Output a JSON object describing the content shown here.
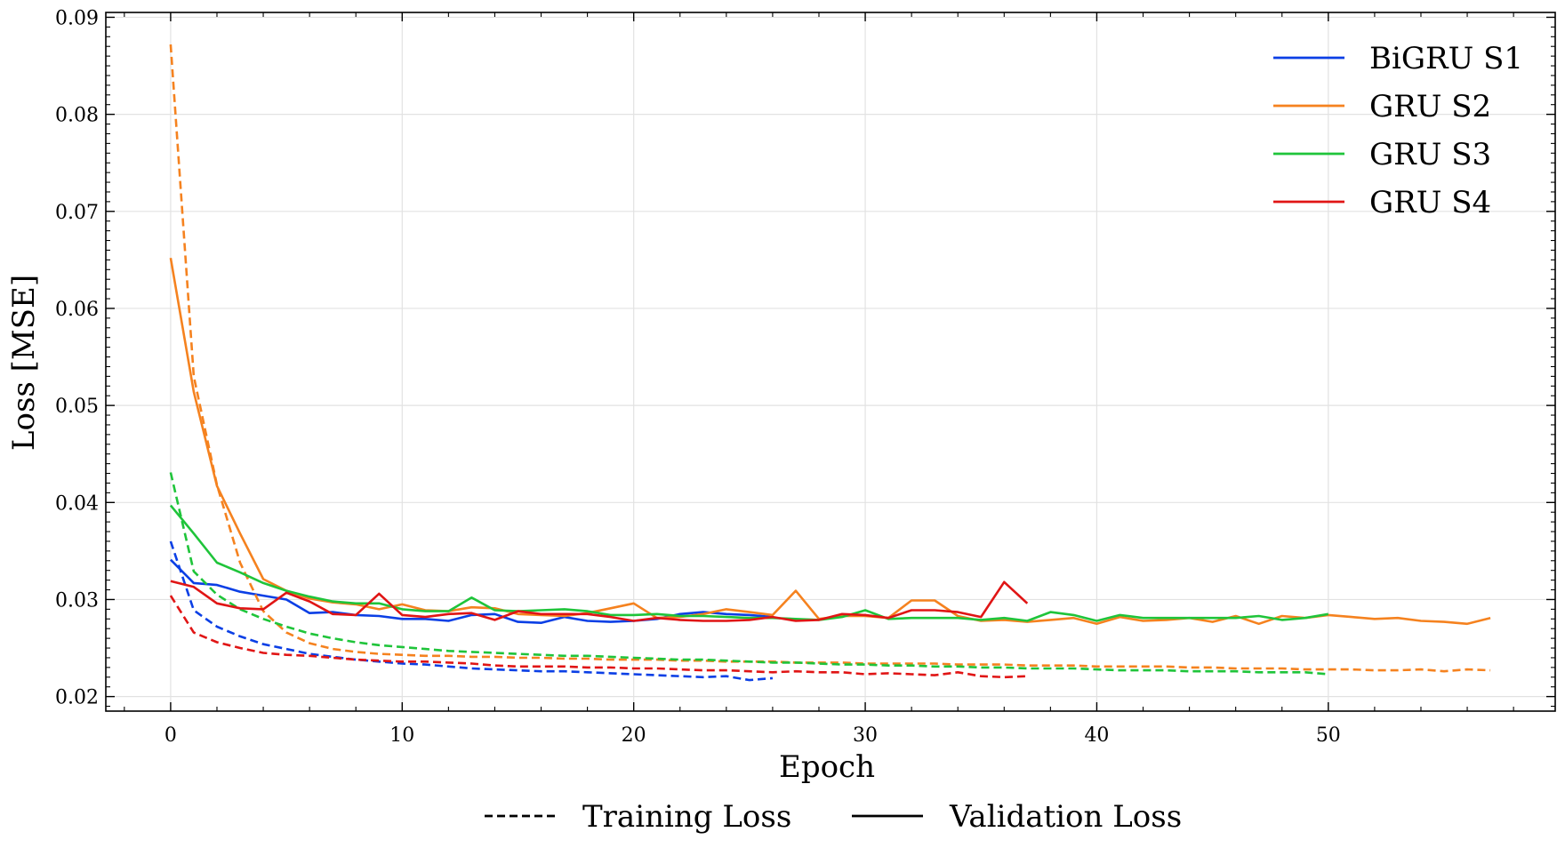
{
  "chart_data": {
    "type": "line",
    "xlabel": "Epoch",
    "ylabel": "Loss [MSE]",
    "xlim": [
      -2.8,
      59.8
    ],
    "ylim": [
      0.0185,
      0.0905
    ],
    "x_ticks": [
      0,
      10,
      20,
      30,
      40,
      50
    ],
    "y_ticks": [
      0.02,
      0.03,
      0.04,
      0.05,
      0.06,
      0.07,
      0.08,
      0.09
    ],
    "x_tick_labels": [
      "0",
      "10",
      "20",
      "30",
      "40",
      "50"
    ],
    "y_tick_labels": [
      "0.02",
      "0.03",
      "0.04",
      "0.05",
      "0.06",
      "0.07",
      "0.08",
      "0.09"
    ],
    "grid": true,
    "legend_placement": "top-right",
    "style_legend_placement": "bottom-center",
    "style_legend": [
      {
        "label": "Training Loss",
        "dash": "dashed"
      },
      {
        "label": "Validation Loss",
        "dash": "solid"
      }
    ],
    "series": [
      {
        "name": "BiGRU S1",
        "color": "#0b3fe5",
        "train": [
          0.036,
          0.0289,
          0.0272,
          0.0262,
          0.0254,
          0.0249,
          0.0244,
          0.0241,
          0.0238,
          0.0236,
          0.0234,
          0.0233,
          0.0231,
          0.0229,
          0.0228,
          0.0227,
          0.0226,
          0.0226,
          0.0225,
          0.0224,
          0.0223,
          0.0222,
          0.0221,
          0.022,
          0.0221,
          0.0217,
          0.0219
        ],
        "val": [
          0.0341,
          0.0317,
          0.0315,
          0.0308,
          0.0304,
          0.03,
          0.0286,
          0.0287,
          0.0284,
          0.0283,
          0.028,
          0.028,
          0.0278,
          0.0284,
          0.0285,
          0.0277,
          0.0276,
          0.0282,
          0.0278,
          0.0277,
          0.0278,
          0.028,
          0.0285,
          0.0287,
          0.0285,
          0.0284,
          0.0282
        ]
      },
      {
        "name": "GRU S2",
        "color": "#f5821f",
        "train": [
          0.0872,
          0.053,
          0.0418,
          0.0338,
          0.0288,
          0.0266,
          0.0255,
          0.0249,
          0.0246,
          0.0244,
          0.0243,
          0.0242,
          0.0242,
          0.0241,
          0.0241,
          0.024,
          0.024,
          0.0239,
          0.0239,
          0.0238,
          0.0238,
          0.0238,
          0.0237,
          0.0237,
          0.0236,
          0.0236,
          0.0236,
          0.0235,
          0.0235,
          0.0235,
          0.0234,
          0.0234,
          0.0234,
          0.0234,
          0.0233,
          0.0233,
          0.0233,
          0.0232,
          0.0232,
          0.0232,
          0.0231,
          0.0231,
          0.0231,
          0.0231,
          0.023,
          0.023,
          0.0229,
          0.0229,
          0.0229,
          0.0228,
          0.0228,
          0.0228,
          0.0227,
          0.0227,
          0.0228,
          0.0226,
          0.0228,
          0.0227
        ],
        "val": [
          0.0652,
          0.0514,
          0.0417,
          0.0368,
          0.0321,
          0.0309,
          0.0301,
          0.0297,
          0.0295,
          0.029,
          0.0295,
          0.0289,
          0.0288,
          0.0292,
          0.0291,
          0.0285,
          0.0284,
          0.0283,
          0.0286,
          0.0291,
          0.0296,
          0.0281,
          0.0282,
          0.0285,
          0.029,
          0.0287,
          0.0284,
          0.0309,
          0.028,
          0.0283,
          0.0283,
          0.0281,
          0.0299,
          0.0299,
          0.0283,
          0.0278,
          0.0279,
          0.0277,
          0.0279,
          0.0281,
          0.0275,
          0.0282,
          0.0278,
          0.0279,
          0.0281,
          0.0277,
          0.0283,
          0.0275,
          0.0283,
          0.0281,
          0.0284,
          0.0282,
          0.028,
          0.0281,
          0.0278,
          0.0277,
          0.0275,
          0.0281
        ]
      },
      {
        "name": "GRU S3",
        "color": "#1fc43a",
        "train": [
          0.0431,
          0.0329,
          0.0305,
          0.029,
          0.028,
          0.0272,
          0.0265,
          0.026,
          0.0256,
          0.0253,
          0.0251,
          0.0249,
          0.0247,
          0.0246,
          0.0245,
          0.0244,
          0.0243,
          0.0242,
          0.0242,
          0.0241,
          0.024,
          0.0239,
          0.0238,
          0.0238,
          0.0237,
          0.0236,
          0.0235,
          0.0235,
          0.0234,
          0.0233,
          0.0233,
          0.0232,
          0.0232,
          0.0231,
          0.0231,
          0.023,
          0.023,
          0.0229,
          0.0229,
          0.0229,
          0.0228,
          0.0227,
          0.0227,
          0.0227,
          0.0226,
          0.0226,
          0.0226,
          0.0225,
          0.0225,
          0.0225,
          0.0223
        ],
        "val": [
          0.0397,
          0.0368,
          0.0338,
          0.0328,
          0.0317,
          0.0309,
          0.0303,
          0.0298,
          0.0296,
          0.0296,
          0.029,
          0.0288,
          0.0288,
          0.0302,
          0.0289,
          0.0288,
          0.0289,
          0.029,
          0.0288,
          0.0284,
          0.0284,
          0.0285,
          0.0283,
          0.0283,
          0.0282,
          0.0281,
          0.0281,
          0.028,
          0.0279,
          0.0282,
          0.0289,
          0.028,
          0.0281,
          0.0281,
          0.0281,
          0.0279,
          0.0281,
          0.0278,
          0.0287,
          0.0284,
          0.0278,
          0.0284,
          0.0281,
          0.0281,
          0.0281,
          0.0281,
          0.0281,
          0.0283,
          0.0279,
          0.0281,
          0.0285
        ]
      },
      {
        "name": "GRU S4",
        "color": "#e01515",
        "train": [
          0.0304,
          0.0266,
          0.0256,
          0.025,
          0.0245,
          0.0243,
          0.0242,
          0.024,
          0.0238,
          0.0237,
          0.0236,
          0.0236,
          0.0235,
          0.0234,
          0.0232,
          0.0231,
          0.0231,
          0.0231,
          0.023,
          0.023,
          0.0229,
          0.0229,
          0.0228,
          0.0227,
          0.0227,
          0.0226,
          0.0225,
          0.0226,
          0.0225,
          0.0225,
          0.0223,
          0.0224,
          0.0223,
          0.0222,
          0.0225,
          0.0221,
          0.022,
          0.0221
        ],
        "val": [
          0.0319,
          0.0313,
          0.0296,
          0.0291,
          0.029,
          0.0307,
          0.0298,
          0.0285,
          0.0284,
          0.0306,
          0.0284,
          0.0282,
          0.0285,
          0.0286,
          0.0279,
          0.0288,
          0.0285,
          0.0285,
          0.0285,
          0.0282,
          0.0278,
          0.0281,
          0.0279,
          0.0278,
          0.0278,
          0.0279,
          0.0282,
          0.0278,
          0.0279,
          0.0285,
          0.0284,
          0.0281,
          0.0289,
          0.0289,
          0.0287,
          0.0282,
          0.0318,
          0.0296
        ]
      }
    ]
  }
}
